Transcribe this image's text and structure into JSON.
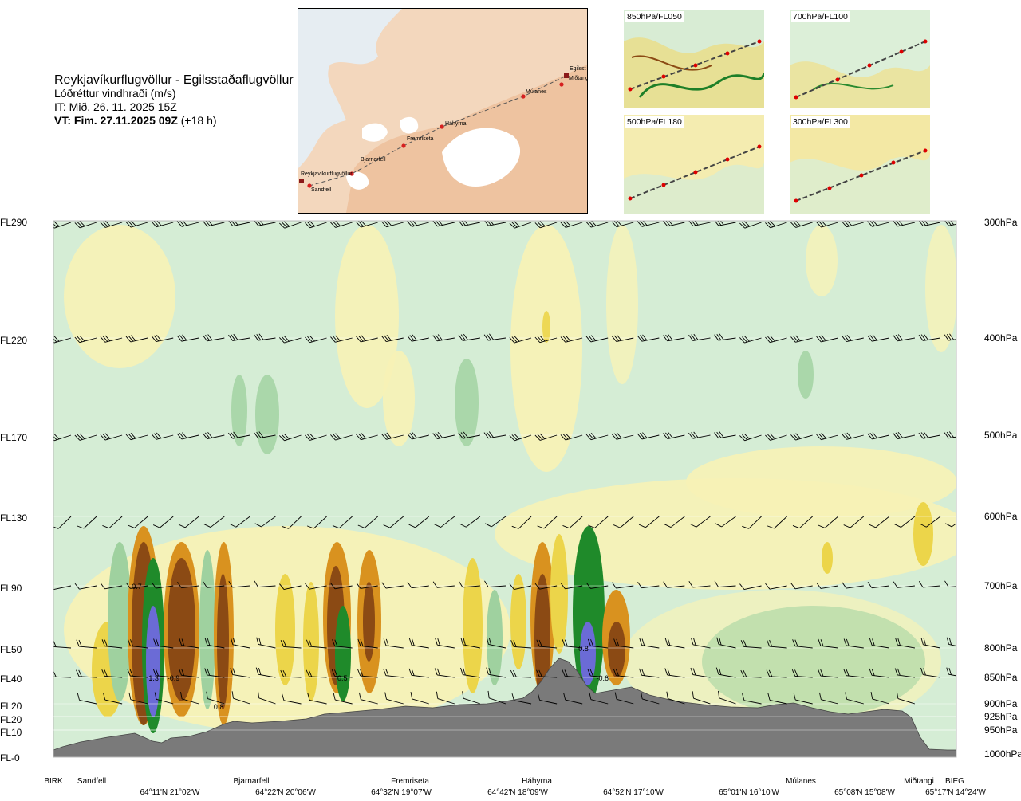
{
  "title": {
    "route": "Reykjavíkurflugvöllur - Egilsstaðaflugvöllur",
    "variable": "Lóðréttur vindhraði (m/s)",
    "issue_time": "IT: Mið. 26. 11. 2025 15Z",
    "valid_time_bold": "VT: Fim. 27.11.2025 09Z",
    "valid_time_offset": " (+18 h)"
  },
  "map": {
    "labels": [
      "Reykjavíkurflugvöllur",
      "Sandfell",
      "Bjarnarfell",
      "Fremriseta",
      "Háhyrna",
      "Múlanes",
      "Egilsst",
      "Miðtangi"
    ]
  },
  "thumbnails": [
    {
      "label": "850hPa/FL050"
    },
    {
      "label": "700hPa/FL100"
    },
    {
      "label": "500hPa/FL180"
    },
    {
      "label": "300hPa/FL300"
    }
  ],
  "colors": {
    "ground": "#7a7a7a",
    "light_green": "#d5edd5",
    "mid_green": "#9fd19f",
    "dark_green": "#1f8a2a",
    "light_yellow": "#f7f2b6",
    "yellow": "#ecd54a",
    "orange": "#d9921f",
    "brown": "#8b4a14",
    "blue": "#6b6bd6"
  },
  "chart_data": {
    "type": "heatmap",
    "title": "Reykjavíkurflugvöllur - Egilsstaðaflugvöllur",
    "variable": "Lóðréttur vindhraði (m/s)",
    "flight_levels": [
      {
        "label": "FL290",
        "hpa": "300hPa",
        "pressure": 300
      },
      {
        "label": "FL220",
        "hpa": "400hPa",
        "pressure": 400
      },
      {
        "label": "FL170",
        "hpa": "500hPa",
        "pressure": 500
      },
      {
        "label": "FL130",
        "hpa": "600hPa",
        "pressure": 600
      },
      {
        "label": "FL90",
        "hpa": "700hPa",
        "pressure": 700
      },
      {
        "label": "FL50",
        "hpa": "800hPa",
        "pressure": 800
      },
      {
        "label": "FL40",
        "hpa": "850hPa",
        "pressure": 850
      },
      {
        "label": "FL20",
        "hpa": "900hPa",
        "pressure": 900
      },
      {
        "label": "FL20",
        "hpa": "925hPa",
        "pressure": 925
      },
      {
        "label": "FL10",
        "hpa": "950hPa",
        "pressure": 950
      },
      {
        "label": "FL-0",
        "hpa": "1000hPa",
        "pressure": 1000
      }
    ],
    "stations": [
      {
        "name": "BIRK",
        "pos": 0.0
      },
      {
        "name": "Sandfell",
        "pos": 0.04
      },
      {
        "name": "Bjarnarfell",
        "pos": 0.22
      },
      {
        "name": "Fremriseta",
        "pos": 0.39
      },
      {
        "name": "Háhyrna",
        "pos": 0.55
      },
      {
        "name": "Múlanes",
        "pos": 0.85
      },
      {
        "name": "Miðtangi",
        "pos": 0.955
      },
      {
        "name": "BIEG",
        "pos": 1.0
      }
    ],
    "coordinates": [
      {
        "label": "64°11'N 21°02'W",
        "pos": 0.12
      },
      {
        "label": "64°22'N 20°06'W",
        "pos": 0.25
      },
      {
        "label": "64°32'N 19°07'W",
        "pos": 0.385
      },
      {
        "label": "64°42'N 18°09'W",
        "pos": 0.515
      },
      {
        "label": "64°52'N 17°10'W",
        "pos": 0.645
      },
      {
        "label": "65°01'N 16°10'W",
        "pos": 0.775
      },
      {
        "label": "65°08'N 15°08'W",
        "pos": 0.905
      },
      {
        "label": "65°17'N 14°24'W",
        "pos": 1.0
      }
    ],
    "value_annotations": [
      {
        "text": "-0.7",
        "pos": 0.091,
        "pressure": 700
      },
      {
        "text": "1.3",
        "pos": 0.111,
        "pressure": 850
      },
      {
        "text": "-0.9",
        "pos": 0.133,
        "pressure": 850
      },
      {
        "text": "0.8",
        "pos": 0.183,
        "pressure": 905
      },
      {
        "text": "0.5",
        "pos": 0.32,
        "pressure": 850
      },
      {
        "text": "0.8",
        "pos": 0.587,
        "pressure": 800
      },
      {
        "text": "-0.6",
        "pos": 0.608,
        "pressure": 850
      }
    ]
  }
}
